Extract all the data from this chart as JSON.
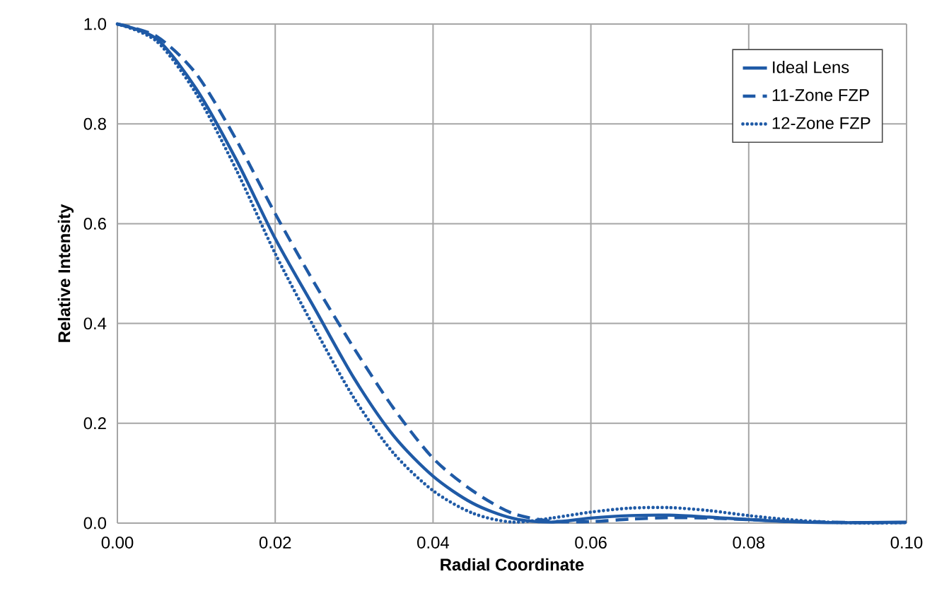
{
  "chart_data": {
    "type": "line",
    "xlabel": "Radial Coordinate",
    "ylabel": "Relative Intensity",
    "xlim": [
      0,
      0.1
    ],
    "ylim": [
      0,
      1
    ],
    "xticks": [
      {
        "value": 0,
        "label": "0.00"
      },
      {
        "value": 0.02,
        "label": "0.02"
      },
      {
        "value": 0.04,
        "label": "0.04"
      },
      {
        "value": 0.06,
        "label": "0.06"
      },
      {
        "value": 0.08,
        "label": "0.08"
      },
      {
        "value": 0.1,
        "label": "0.10"
      }
    ],
    "yticks": [
      {
        "value": 0,
        "label": "0.0"
      },
      {
        "value": 0.2,
        "label": "0.2"
      },
      {
        "value": 0.4,
        "label": "0.4"
      },
      {
        "value": 0.6,
        "label": "0.6"
      },
      {
        "value": 0.8,
        "label": "0.8"
      },
      {
        "value": 1,
        "label": "1.0"
      }
    ],
    "x": [
      0,
      0.005,
      0.01,
      0.015,
      0.02,
      0.025,
      0.03,
      0.035,
      0.04,
      0.045,
      0.05,
      0.055,
      0.06,
      0.065,
      0.07,
      0.075,
      0.08,
      0.085,
      0.09,
      0.095,
      0.1
    ],
    "grid": true,
    "legend": "top right",
    "marker": "none",
    "series": [
      {
        "name": "Ideal Lens",
        "color": "#1f5aa6",
        "line_style": "solid",
        "values": [
          1,
          0.97,
          0.87,
          0.73,
          0.57,
          0.43,
          0.29,
          0.175,
          0.094,
          0.04,
          0.01,
          0.002,
          0.01,
          0.015,
          0.016,
          0.012,
          0.007,
          0.003,
          0.001,
          0.001,
          0.002
        ]
      },
      {
        "name": "11-Zone FZP",
        "color": "#1f5aa6",
        "line_style": "dashed",
        "values": [
          1,
          0.975,
          0.9,
          0.77,
          0.62,
          0.48,
          0.35,
          0.23,
          0.13,
          0.065,
          0.02,
          0.004,
          0.003,
          0.008,
          0.011,
          0.01,
          0.007,
          0.004,
          0.002,
          0.001,
          0.001
        ]
      },
      {
        "name": "12-Zone FZP",
        "color": "#1f5aa6",
        "line_style": "dotted",
        "values": [
          1,
          0.965,
          0.86,
          0.71,
          0.54,
          0.39,
          0.25,
          0.14,
          0.065,
          0.02,
          0.002,
          0.01,
          0.022,
          0.03,
          0.031,
          0.025,
          0.015,
          0.007,
          0.002,
          0,
          0.001
        ]
      }
    ]
  }
}
